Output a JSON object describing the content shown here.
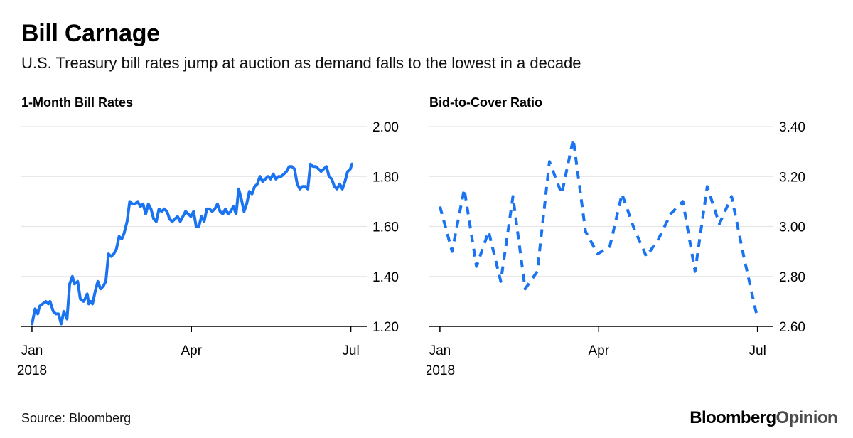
{
  "header": {
    "title": "Bill Carnage",
    "subtitle": "U.S. Treasury bill rates jump at auction as demand falls to the lowest in a decade"
  },
  "footer": {
    "source": "Source: Bloomberg",
    "logo_brand": "Bloomberg",
    "logo_suffix": "Opinion"
  },
  "colors": {
    "series": "#1a73f0",
    "grid": "#e6e6e6",
    "axis": "#000000"
  },
  "chart_data": [
    {
      "type": "line",
      "style": "solid",
      "title": "1-Month Bill Rates",
      "xlabel": "",
      "ylabel": "",
      "ylim": [
        1.2,
        2.0
      ],
      "xlim": [
        -0.2,
        6.3
      ],
      "y_ticks": [
        {
          "value": 2.0,
          "label": "2.00"
        },
        {
          "value": 1.8,
          "label": "1.80"
        },
        {
          "value": 1.6,
          "label": "1.60"
        },
        {
          "value": 1.4,
          "label": "1.40"
        },
        {
          "value": 1.2,
          "label": "1.20"
        }
      ],
      "x_ticks": [
        {
          "value": 0,
          "label": "Jan",
          "sublabel": "2018"
        },
        {
          "value": 3,
          "label": "Apr",
          "sublabel": ""
        },
        {
          "value": 6,
          "label": "Jul",
          "sublabel": ""
        }
      ],
      "x_minor_ticks": [
        0,
        3,
        6
      ],
      "series": [
        {
          "name": "1-Month Bill Rate (%)",
          "x": [
            0.0,
            0.06,
            0.11,
            0.14,
            0.2,
            0.26,
            0.31,
            0.34,
            0.4,
            0.45,
            0.5,
            0.55,
            0.6,
            0.66,
            0.71,
            0.76,
            0.8,
            0.86,
            0.91,
            0.97,
            1.0,
            1.04,
            1.07,
            1.11,
            1.14,
            1.19,
            1.24,
            1.29,
            1.34,
            1.39,
            1.44,
            1.49,
            1.54,
            1.59,
            1.64,
            1.69,
            1.73,
            1.79,
            1.84,
            1.89,
            1.94,
            1.99,
            2.04,
            2.09,
            2.14,
            2.19,
            2.24,
            2.29,
            2.34,
            2.39,
            2.44,
            2.49,
            2.54,
            2.59,
            2.64,
            2.69,
            2.74,
            2.79,
            2.84,
            2.89,
            2.94,
            2.99,
            3.04,
            3.09,
            3.14,
            3.19,
            3.24,
            3.29,
            3.34,
            3.39,
            3.44,
            3.49,
            3.54,
            3.59,
            3.64,
            3.69,
            3.74,
            3.79,
            3.84,
            3.89,
            3.94,
            3.99,
            4.04,
            4.09,
            4.14,
            4.19,
            4.24,
            4.29,
            4.34,
            4.39,
            4.44,
            4.49,
            4.54,
            4.59,
            4.64,
            4.69,
            4.74,
            4.79,
            4.84,
            4.89,
            4.94,
            4.99,
            5.04,
            5.09,
            5.14,
            5.19,
            5.24,
            5.29,
            5.34,
            5.39,
            5.44,
            5.49,
            5.54,
            5.59,
            5.64,
            5.69,
            5.74,
            5.79,
            5.84,
            5.89,
            5.94,
            5.99,
            6.02
          ],
          "y": [
            1.21,
            1.27,
            1.25,
            1.28,
            1.29,
            1.3,
            1.29,
            1.3,
            1.26,
            1.25,
            1.25,
            1.21,
            1.26,
            1.23,
            1.37,
            1.4,
            1.37,
            1.38,
            1.31,
            1.3,
            1.31,
            1.33,
            1.29,
            1.3,
            1.29,
            1.34,
            1.38,
            1.35,
            1.36,
            1.38,
            1.49,
            1.48,
            1.49,
            1.51,
            1.56,
            1.55,
            1.57,
            1.62,
            1.7,
            1.69,
            1.69,
            1.7,
            1.68,
            1.69,
            1.65,
            1.69,
            1.67,
            1.63,
            1.62,
            1.67,
            1.66,
            1.67,
            1.66,
            1.63,
            1.62,
            1.63,
            1.64,
            1.62,
            1.64,
            1.66,
            1.65,
            1.64,
            1.66,
            1.6,
            1.6,
            1.64,
            1.62,
            1.67,
            1.67,
            1.66,
            1.67,
            1.69,
            1.66,
            1.65,
            1.67,
            1.65,
            1.66,
            1.68,
            1.65,
            1.75,
            1.71,
            1.66,
            1.69,
            1.74,
            1.73,
            1.76,
            1.77,
            1.8,
            1.78,
            1.79,
            1.8,
            1.79,
            1.81,
            1.79,
            1.8,
            1.8,
            1.81,
            1.82,
            1.84,
            1.84,
            1.83,
            1.77,
            1.75,
            1.76,
            1.76,
            1.75,
            1.85,
            1.84,
            1.84,
            1.83,
            1.82,
            1.83,
            1.84,
            1.8,
            1.79,
            1.76,
            1.75,
            1.77,
            1.75,
            1.78,
            1.82,
            1.83,
            1.85
          ]
        }
      ]
    },
    {
      "type": "line",
      "style": "dashed",
      "title": "Bid-to-Cover Ratio",
      "xlabel": "",
      "ylabel": "",
      "ylim": [
        2.6,
        3.4
      ],
      "xlim": [
        -0.2,
        6.3
      ],
      "y_ticks": [
        {
          "value": 3.4,
          "label": "3.40"
        },
        {
          "value": 3.2,
          "label": "3.20"
        },
        {
          "value": 3.0,
          "label": "3.00"
        },
        {
          "value": 2.8,
          "label": "2.80"
        },
        {
          "value": 2.6,
          "label": "2.60"
        }
      ],
      "x_ticks": [
        {
          "value": 0,
          "label": "Jan",
          "sublabel": "2018"
        },
        {
          "value": 3,
          "label": "Apr",
          "sublabel": ""
        },
        {
          "value": 6,
          "label": "Jul",
          "sublabel": ""
        }
      ],
      "x_minor_ticks": [
        0,
        3,
        6
      ],
      "series": [
        {
          "name": "Bid-to-Cover Ratio",
          "x": [
            0.0,
            0.23,
            0.46,
            0.69,
            0.92,
            1.15,
            1.38,
            1.61,
            1.84,
            2.07,
            2.3,
            2.52,
            2.75,
            2.98,
            3.21,
            3.44,
            3.67,
            3.9,
            4.13,
            4.36,
            4.59,
            4.82,
            5.05,
            5.28,
            5.51,
            5.74,
            5.97,
            6.02
          ],
          "y": [
            3.08,
            2.9,
            3.15,
            2.84,
            2.98,
            2.78,
            3.12,
            2.75,
            2.82,
            3.26,
            3.13,
            3.35,
            2.98,
            2.89,
            2.92,
            3.13,
            2.99,
            2.88,
            2.95,
            3.05,
            3.1,
            2.82,
            3.16,
            3.01,
            3.12,
            2.88,
            2.66,
            2.63
          ]
        }
      ]
    }
  ]
}
